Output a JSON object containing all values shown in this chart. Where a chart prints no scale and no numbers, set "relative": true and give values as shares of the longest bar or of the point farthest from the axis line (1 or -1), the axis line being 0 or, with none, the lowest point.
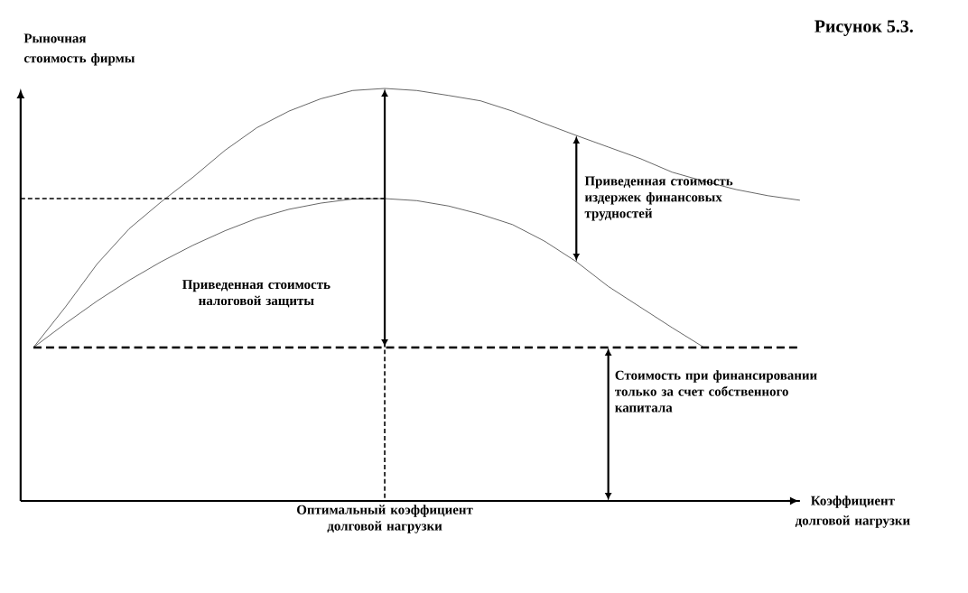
{
  "chart_data": {
    "type": "line",
    "relative": true,
    "title": "Рисунок 5.3.",
    "ylabel": "Рыночная стоимость фирмы",
    "xlabel": "Коэффициент долговой нагрузки",
    "categories": [
      null,
      null,
      null,
      null,
      null,
      null,
      null,
      null,
      null,
      null,
      null,
      null,
      null,
      null,
      null,
      null,
      null,
      null,
      null,
      null,
      null,
      null,
      null,
      null,
      null
    ],
    "series": [
      {
        "color": "#000000",
        "values": [
          0.372,
          0.47,
          0.575,
          0.66,
          0.725,
          0.785,
          0.85,
          0.905,
          0.945,
          0.975,
          0.995,
          1.0,
          0.995,
          0.983,
          0.97,
          0.945,
          0.915,
          0.886,
          0.858,
          0.83,
          0.797,
          0.775,
          0.755,
          0.74,
          0.729
        ]
      },
      {
        "color": "#000000",
        "values": [
          0.372,
          0.43,
          0.485,
          0.535,
          0.58,
          0.62,
          0.655,
          0.685,
          0.707,
          0.722,
          0.732,
          0.733,
          0.728,
          0.715,
          0.695,
          0.67,
          0.63,
          0.58,
          0.52,
          0.47,
          0.42,
          0.372,
          null,
          null,
          null
        ]
      },
      {
        "color": "#000000",
        "values": [
          0.372,
          0.372,
          0.372,
          0.372,
          0.372,
          0.372,
          0.372,
          0.372,
          0.372,
          0.372,
          0.372,
          0.372,
          0.372,
          0.372,
          0.372,
          0.372,
          0.372,
          0.372,
          0.372,
          0.372,
          0.372,
          0.372,
          0.372,
          0.372,
          0.372
        ],
        "line_style": "dashed"
      }
    ],
    "ref_lines": [
      {
        "axis": "y",
        "value": 0.733,
        "line_style": "dotted"
      }
    ],
    "annotations": [
      "Приведенная стоимость издержек финансовых трудностей",
      "Приведенная стоимость налоговой защиты",
      "Стоимость при финансировании только за счет собственного капитала",
      "Оптимальный коэффициент долговой нагрузки"
    ]
  }
}
